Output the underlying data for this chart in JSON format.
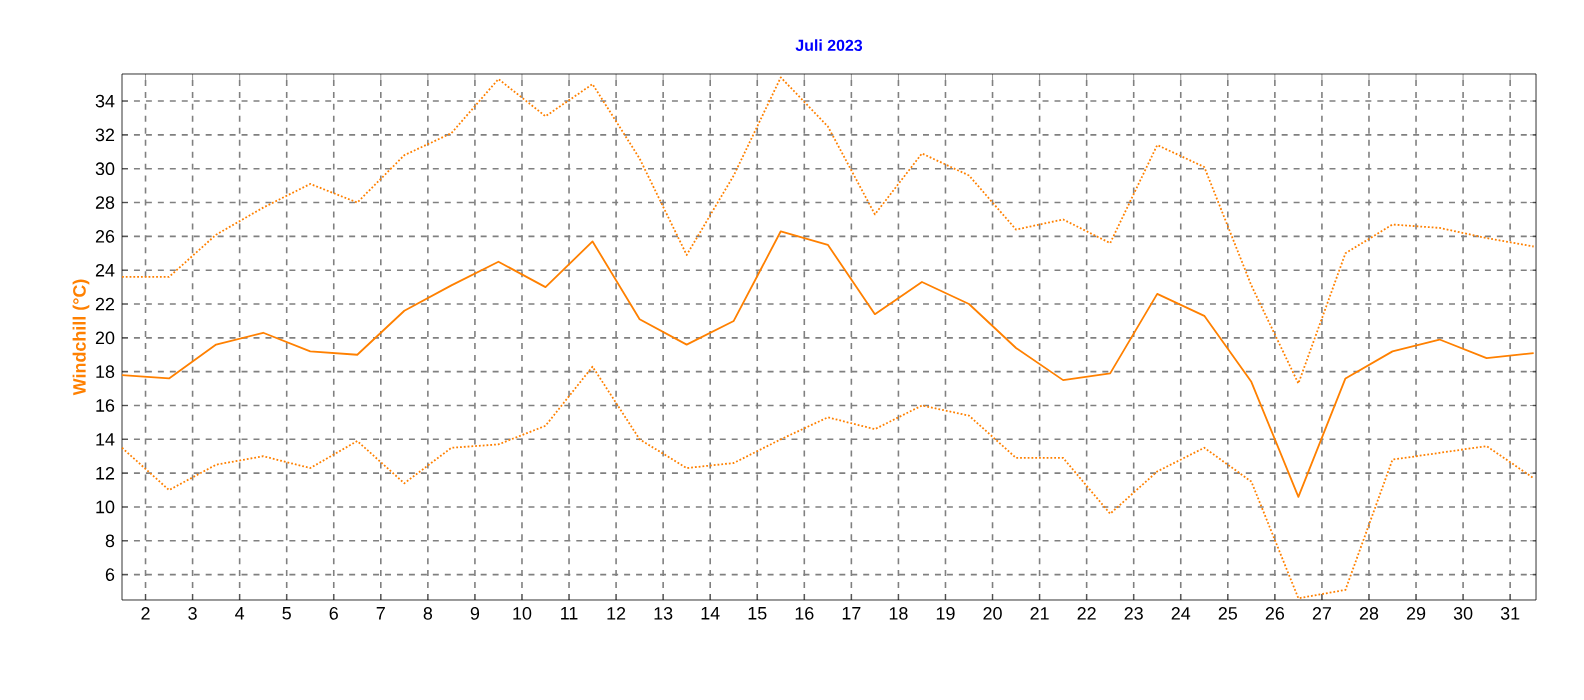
{
  "chart_data": {
    "type": "line",
    "title": "Juli 2023",
    "ylabel": "Windchill  (°C)",
    "x": [
      1.5,
      2.5,
      3.5,
      4.5,
      5.5,
      6.5,
      7.5,
      8.5,
      9.5,
      10.5,
      11.5,
      12.5,
      13.5,
      14.5,
      15.5,
      16.5,
      17.5,
      18.5,
      19.5,
      20.5,
      21.5,
      22.5,
      23.5,
      24.5,
      25.5,
      26.5,
      27.5,
      28.5,
      29.5,
      30.5,
      31.5
    ],
    "series": [
      {
        "color": "#ff8000",
        "line_style": "dotted",
        "values": [
          23.6,
          23.6,
          26.1,
          27.7,
          29.1,
          28.0,
          30.8,
          32.1,
          35.3,
          33.1,
          35.0,
          30.6,
          24.9,
          29.6,
          35.4,
          32.5,
          27.3,
          30.9,
          29.6,
          26.4,
          27.0,
          25.6,
          31.4,
          30.1,
          23.1,
          17.3,
          25.0,
          26.7,
          26.5,
          25.9,
          25.4
        ]
      },
      {
        "color": "#ff8000",
        "line_style": "solid",
        "values": [
          17.8,
          17.6,
          19.6,
          20.3,
          19.2,
          19.0,
          21.6,
          23.1,
          24.5,
          23.0,
          25.7,
          21.1,
          19.6,
          21.0,
          26.3,
          25.5,
          21.4,
          23.3,
          22.0,
          19.4,
          17.5,
          17.9,
          22.6,
          21.3,
          17.4,
          10.6,
          17.6,
          19.2,
          19.9,
          18.8,
          19.1
        ]
      },
      {
        "color": "#ff8000",
        "line_style": "dotted",
        "values": [
          13.5,
          11.0,
          12.5,
          13.0,
          12.3,
          13.9,
          11.4,
          13.5,
          13.7,
          14.8,
          18.3,
          14.0,
          12.3,
          12.6,
          14.0,
          15.3,
          14.6,
          16.0,
          15.4,
          12.9,
          12.9,
          9.6,
          12.1,
          13.5,
          11.5,
          4.6,
          5.1,
          12.8,
          13.2,
          13.6,
          11.7
        ]
      }
    ],
    "xlim": [
      1.5,
      31.55
    ],
    "xticks": [
      2,
      3,
      4,
      5,
      6,
      7,
      8,
      9,
      10,
      11,
      12,
      13,
      14,
      15,
      16,
      17,
      18,
      19,
      20,
      21,
      22,
      23,
      24,
      25,
      26,
      27,
      28,
      29,
      30,
      31
    ],
    "ylim": [
      4.5,
      35.6
    ],
    "yticks": [
      6,
      8,
      10,
      12,
      14,
      16,
      18,
      20,
      22,
      24,
      26,
      28,
      30,
      32,
      34
    ],
    "grid": true,
    "marker": "none"
  }
}
